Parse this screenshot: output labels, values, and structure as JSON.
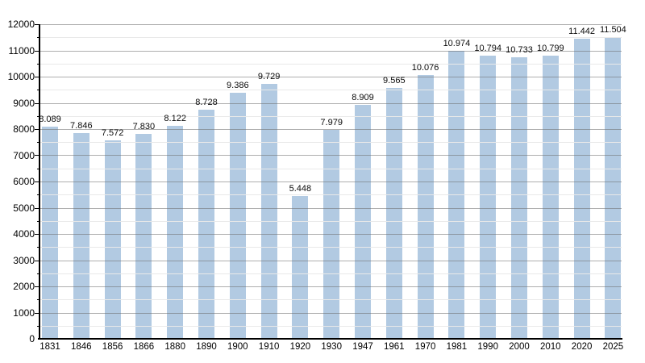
{
  "chart_data": {
    "type": "bar",
    "title": "",
    "xlabel": "",
    "ylabel": "",
    "categories": [
      "1831",
      "1846",
      "1856",
      "1866",
      "1880",
      "1890",
      "1900",
      "1910",
      "1920",
      "1930",
      "1947",
      "1961",
      "1970",
      "1981",
      "1990",
      "2000",
      "2010",
      "2020",
      "2025"
    ],
    "values": [
      8089,
      7846,
      7572,
      7830,
      8122,
      8728,
      9386,
      9729,
      5448,
      7979,
      8909,
      9565,
      10076,
      10974,
      10794,
      10733,
      10799,
      11442,
      11504
    ],
    "value_labels": [
      "8.089",
      "7.846",
      "7.572",
      "7.830",
      "8.122",
      "8.728",
      "9.386",
      "9.729",
      "5.448",
      "7.979",
      "8.909",
      "9.565",
      "10.076",
      "10.974",
      "10.794",
      "10.733",
      "10.799",
      "11.442",
      "11.504"
    ],
    "ylim": [
      0,
      12000
    ],
    "y_major_step": 1000,
    "y_minor_step": 500,
    "y_tick_labels": [
      "0",
      "1000",
      "2000",
      "3000",
      "4000",
      "5000",
      "6000",
      "7000",
      "8000",
      "9000",
      "10000",
      "11000",
      "12000"
    ],
    "grid": true,
    "legend": "none",
    "colors": {
      "bar_fill": "#b2cae2",
      "grid_major": "#787878",
      "grid_minor": "#e9e9e9",
      "axis": "#000000",
      "text": "#0a0a0a",
      "background": "#ffffff"
    }
  }
}
